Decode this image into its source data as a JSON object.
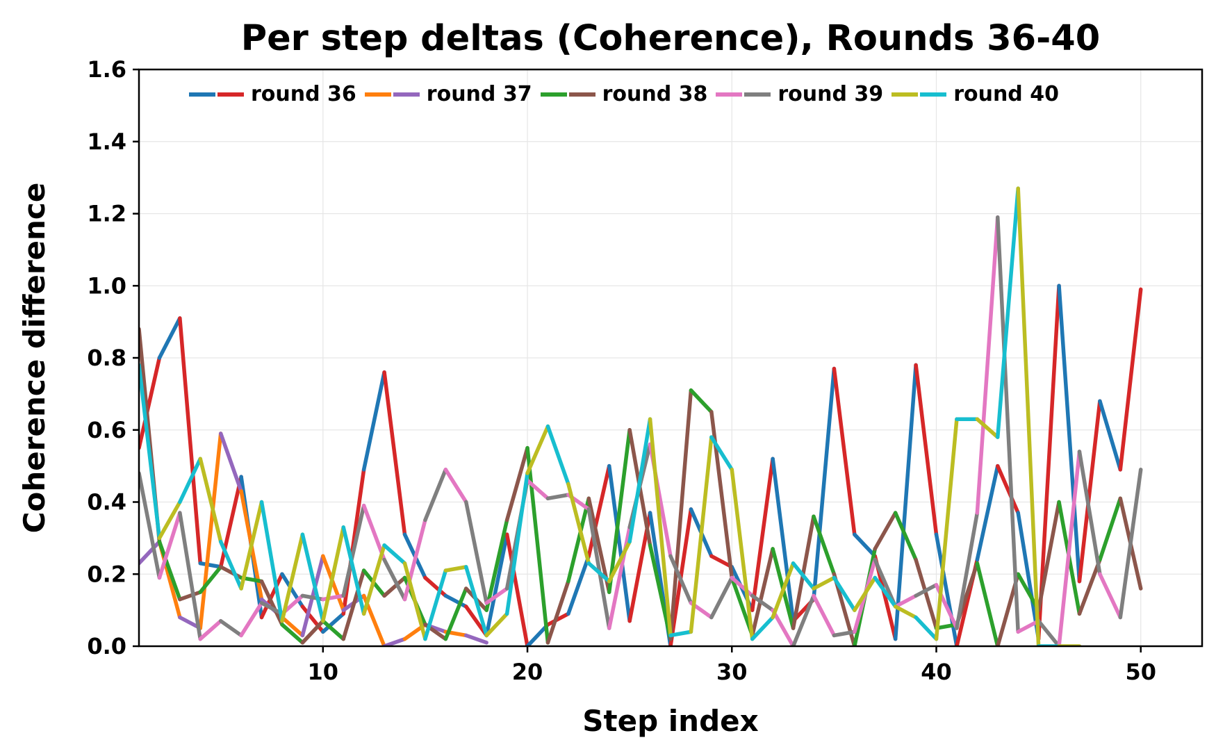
{
  "chart_data": {
    "type": "line",
    "title": "Per step deltas (Coherence), Rounds 36-40",
    "xlabel": "Step index",
    "ylabel": "Coherence difference",
    "xlim": [
      1,
      53
    ],
    "ylim": [
      0,
      1.6
    ],
    "xticks": [
      "10",
      "20",
      "30",
      "40",
      "50"
    ],
    "yticks": [
      "0.0",
      "0.2",
      "0.4",
      "0.6",
      "0.8",
      "1.0",
      "1.2",
      "1.4",
      "1.6"
    ],
    "grid": true,
    "legend_position": "top",
    "series": [
      {
        "name": "round 36",
        "colors": [
          "#d62728",
          "#1f77b4"
        ],
        "values": [
          0.55,
          0.8,
          0.91,
          0.23,
          0.22,
          0.47,
          0.08,
          0.2,
          0.11,
          0.04,
          0.09,
          0.49,
          0.76,
          0.31,
          0.19,
          0.14,
          0.11,
          0.03,
          0.31,
          0.0,
          0.06,
          0.09,
          0.25,
          0.5,
          0.07,
          0.37,
          0.0,
          0.38,
          0.25,
          0.22,
          0.1,
          0.52,
          0.07,
          0.13,
          0.77,
          0.31,
          0.25,
          0.02,
          0.78,
          0.31,
          0.0,
          0.24,
          0.5,
          0.37,
          0.02,
          1.0,
          0.18,
          0.68,
          0.49,
          0.99
        ]
      },
      {
        "name": "round 37",
        "colors": [
          "#9467bd",
          "#ff7f0e"
        ],
        "values": [
          0.23,
          0.29,
          0.08,
          0.05,
          0.59,
          0.43,
          0.13,
          0.08,
          0.03,
          0.25,
          0.1,
          0.14,
          0.0,
          0.02,
          0.06,
          0.04,
          0.03,
          0.01
        ]
      },
      {
        "name": "round 38",
        "colors": [
          "#8c564b",
          "#2ca02c"
        ],
        "values": [
          0.88,
          0.29,
          0.13,
          0.15,
          0.22,
          0.19,
          0.18,
          0.06,
          0.01,
          0.07,
          0.02,
          0.21,
          0.14,
          0.19,
          0.06,
          0.02,
          0.16,
          0.1,
          0.35,
          0.55,
          0.01,
          0.18,
          0.41,
          0.15,
          0.6,
          0.28,
          0.02,
          0.71,
          0.65,
          0.19,
          0.03,
          0.27,
          0.05,
          0.36,
          0.2,
          0.0,
          0.27,
          0.37,
          0.24,
          0.05,
          0.06,
          0.23,
          0.0,
          0.2,
          0.1,
          0.4,
          0.09,
          0.24,
          0.41,
          0.16
        ]
      },
      {
        "name": "round 39",
        "colors": [
          "#7f7f7f",
          "#e377c2"
        ],
        "values": [
          0.48,
          0.19,
          0.37,
          0.02,
          0.07,
          0.03,
          0.12,
          0.09,
          0.14,
          0.13,
          0.14,
          0.39,
          0.24,
          0.13,
          0.35,
          0.49,
          0.4,
          0.12,
          0.16,
          0.46,
          0.41,
          0.42,
          0.38,
          0.05,
          0.33,
          0.56,
          0.25,
          0.12,
          0.08,
          0.19,
          0.14,
          0.1,
          0.0,
          0.14,
          0.03,
          0.04,
          0.24,
          0.11,
          0.14,
          0.17,
          0.05,
          0.37,
          1.19,
          0.04,
          0.07,
          0.0,
          0.54,
          0.2,
          0.08,
          0.49
        ]
      },
      {
        "name": "round 40",
        "colors": [
          "#17becf",
          "#bcbd22"
        ],
        "values": [
          0.78,
          0.3,
          0.4,
          0.52,
          0.29,
          0.16,
          0.4,
          0.07,
          0.31,
          0.07,
          0.33,
          0.09,
          0.28,
          0.23,
          0.02,
          0.21,
          0.22,
          0.03,
          0.09,
          0.48,
          0.61,
          0.45,
          0.23,
          0.18,
          0.29,
          0.63,
          0.03,
          0.04,
          0.58,
          0.49,
          0.02,
          0.08,
          0.23,
          0.16,
          0.19,
          0.1,
          0.19,
          0.11,
          0.08,
          0.02,
          0.63,
          0.63,
          0.58,
          1.27,
          0.0,
          0.0,
          0.0
        ]
      }
    ]
  }
}
